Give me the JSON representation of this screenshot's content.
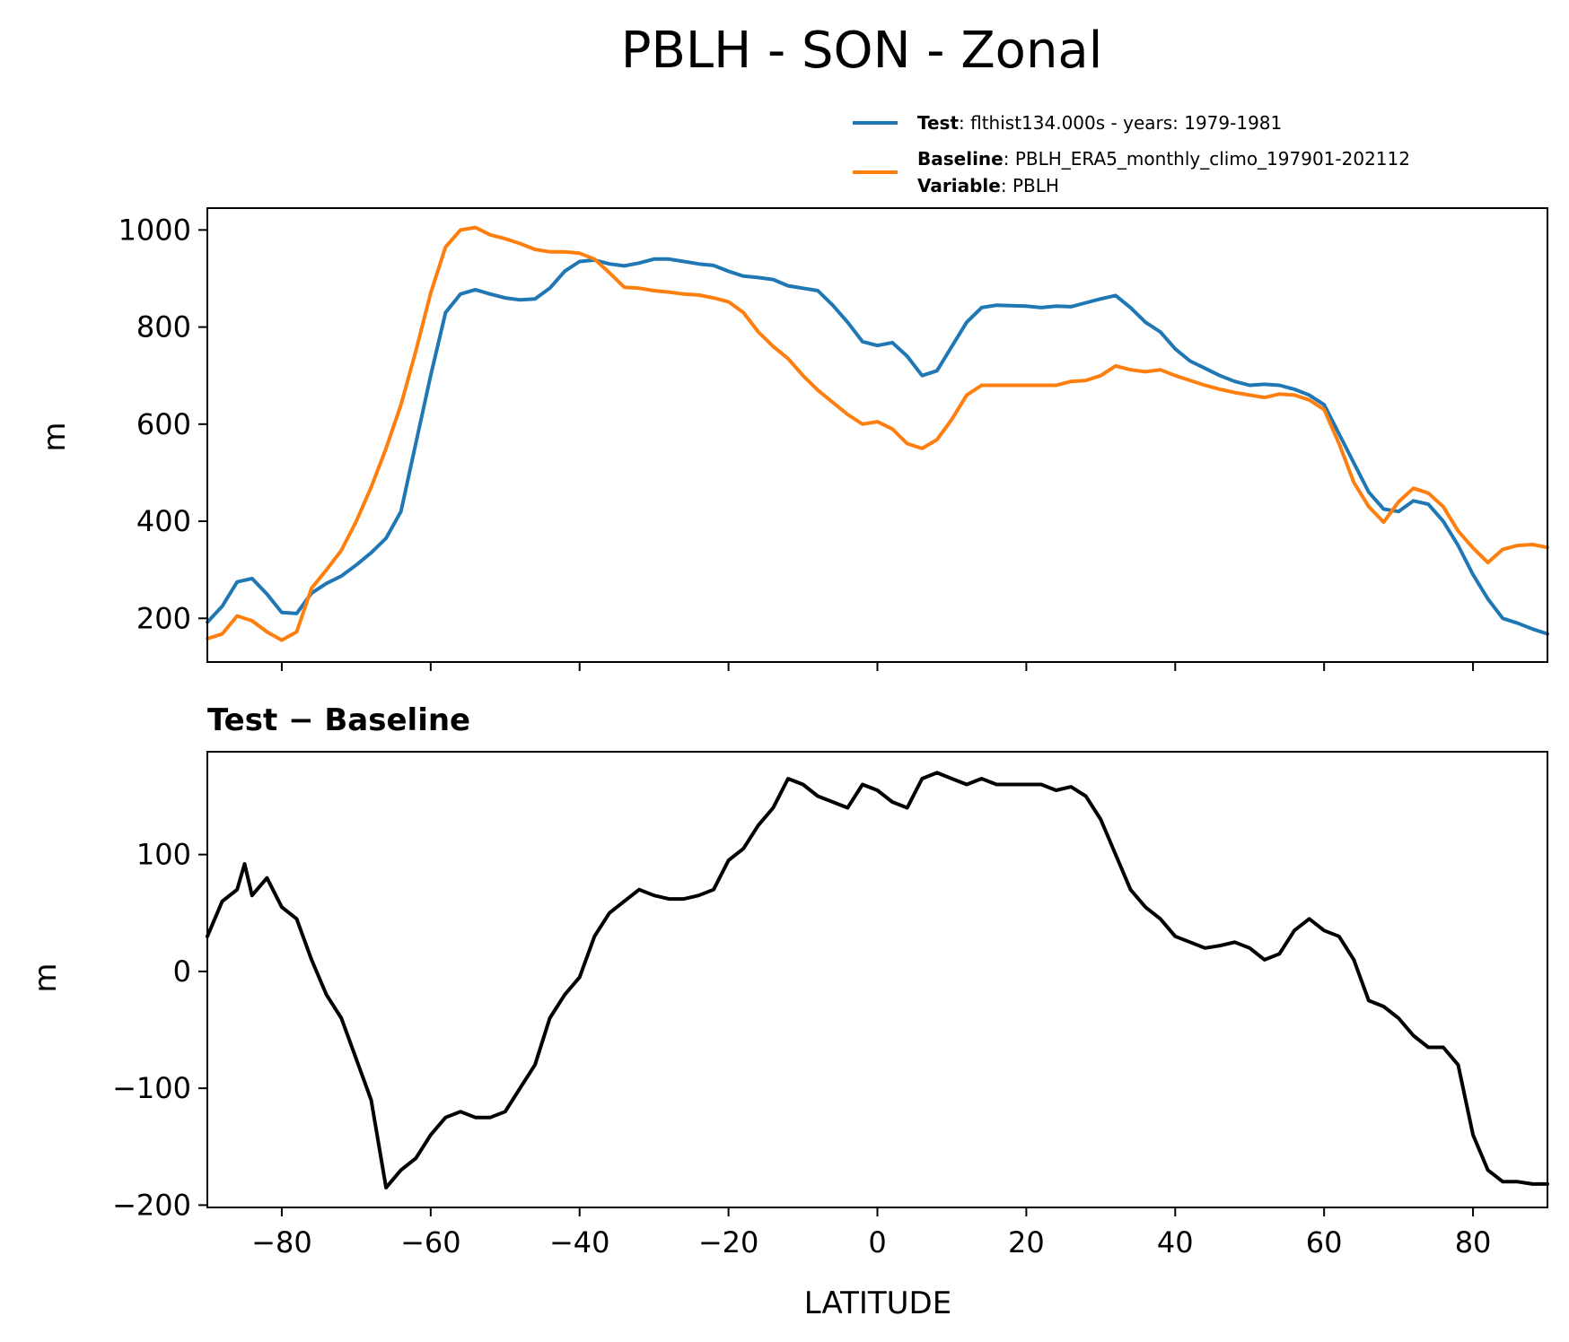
{
  "title": "PBLH - SON - Zonal",
  "legend": {
    "test_key": "Test",
    "test_value": ": flthist134.000s - years: 1979-1981",
    "baseline_key": "Baseline",
    "baseline_value": ": PBLH_ERA5_monthly_climo_197901-202112",
    "variable_key": "Variable",
    "variable_value": ": PBLH",
    "placement": "upper-right, above top panel"
  },
  "colors": {
    "test": "#1f77b4",
    "baseline": "#ff7f0e",
    "diff": "#000000"
  },
  "chart_data": [
    {
      "type": "line",
      "xlabel": "",
      "ylabel": "m",
      "xlim": [
        -90,
        90
      ],
      "ylim": [
        110,
        1045
      ],
      "xticks": [
        -80,
        -60,
        -40,
        -20,
        0,
        20,
        40,
        60,
        80
      ],
      "yticks": [
        200,
        400,
        600,
        800,
        1000
      ],
      "ytick_labels": [
        "200",
        "400",
        "600",
        "800",
        "1000"
      ],
      "grid": false,
      "series": [
        {
          "name": "Test",
          "color": "#1f77b4",
          "x": [
            -90,
            -88,
            -86,
            -84,
            -82,
            -80,
            -78,
            -76,
            -74,
            -72,
            -70,
            -68,
            -66,
            -64,
            -62,
            -60,
            -58,
            -56,
            -54,
            -52,
            -50,
            -48,
            -46,
            -44,
            -42,
            -40,
            -38,
            -36,
            -34,
            -32,
            -30,
            -28,
            -26,
            -24,
            -22,
            -20,
            -18,
            -16,
            -14,
            -12,
            -10,
            -8,
            -6,
            -4,
            -2,
            0,
            2,
            4,
            6,
            8,
            10,
            12,
            14,
            16,
            18,
            20,
            22,
            24,
            26,
            28,
            30,
            32,
            34,
            36,
            38,
            40,
            42,
            44,
            46,
            48,
            50,
            52,
            54,
            56,
            58,
            60,
            62,
            64,
            66,
            68,
            70,
            72,
            74,
            76,
            78,
            80,
            82,
            84,
            86,
            88,
            90
          ],
          "y": [
            192,
            225,
            275,
            282,
            250,
            212,
            210,
            252,
            272,
            287,
            310,
            335,
            365,
            420,
            560,
            700,
            830,
            868,
            877,
            868,
            860,
            856,
            858,
            880,
            915,
            935,
            938,
            930,
            926,
            932,
            940,
            940,
            935,
            930,
            927,
            915,
            905,
            902,
            898,
            885,
            880,
            875,
            845,
            810,
            770,
            762,
            768,
            740,
            700,
            710,
            760,
            810,
            840,
            845,
            844,
            843,
            840,
            843,
            842,
            850,
            858,
            865,
            840,
            810,
            790,
            755,
            730,
            715,
            700,
            688,
            680,
            682,
            680,
            672,
            660,
            640,
            580,
            520,
            460,
            425,
            420,
            442,
            435,
            400,
            350,
            290,
            240,
            200,
            190,
            178,
            168
          ]
        },
        {
          "name": "Baseline",
          "color": "#ff7f0e",
          "x": [
            -90,
            -88,
            -86,
            -84,
            -82,
            -80,
            -78,
            -76,
            -74,
            -72,
            -70,
            -68,
            -66,
            -64,
            -62,
            -60,
            -58,
            -56,
            -54,
            -52,
            -50,
            -48,
            -46,
            -44,
            -42,
            -40,
            -38,
            -36,
            -34,
            -32,
            -30,
            -28,
            -26,
            -24,
            -22,
            -20,
            -18,
            -16,
            -14,
            -12,
            -10,
            -8,
            -6,
            -4,
            -2,
            0,
            2,
            4,
            6,
            8,
            10,
            12,
            14,
            16,
            18,
            20,
            22,
            24,
            26,
            28,
            30,
            32,
            34,
            36,
            38,
            40,
            42,
            44,
            46,
            48,
            50,
            52,
            54,
            56,
            58,
            60,
            62,
            64,
            66,
            68,
            70,
            72,
            74,
            76,
            78,
            80,
            82,
            84,
            86,
            88,
            90
          ],
          "y": [
            158,
            168,
            205,
            195,
            172,
            155,
            172,
            262,
            300,
            340,
            400,
            470,
            550,
            640,
            750,
            870,
            965,
            1000,
            1005,
            990,
            982,
            972,
            960,
            955,
            955,
            952,
            940,
            912,
            882,
            880,
            875,
            872,
            868,
            866,
            860,
            852,
            830,
            790,
            760,
            735,
            700,
            670,
            645,
            620,
            600,
            605,
            590,
            560,
            550,
            568,
            610,
            660,
            680,
            680,
            680,
            680,
            680,
            680,
            688,
            690,
            700,
            720,
            712,
            708,
            712,
            700,
            690,
            680,
            672,
            665,
            660,
            655,
            662,
            660,
            650,
            630,
            560,
            480,
            430,
            398,
            440,
            468,
            458,
            430,
            380,
            345,
            315,
            342,
            350,
            352,
            346
          ]
        }
      ]
    },
    {
      "type": "line",
      "title": "Test − Baseline",
      "xlabel": "LATITUDE",
      "ylabel": "m",
      "xlim": [
        -90,
        90
      ],
      "ylim": [
        -202,
        188
      ],
      "xticks": [
        -80,
        -60,
        -40,
        -20,
        0,
        20,
        40,
        60,
        80
      ],
      "xtick_labels": [
        "−80",
        "−60",
        "−40",
        "−20",
        "0",
        "20",
        "40",
        "60",
        "80"
      ],
      "yticks": [
        -200,
        -100,
        0,
        100
      ],
      "ytick_labels": [
        "−200",
        "−100",
        "0",
        "100"
      ],
      "grid": false,
      "series": [
        {
          "name": "Test − Baseline",
          "color": "#000000",
          "x": [
            -90,
            -88,
            -86,
            -85,
            -84,
            -82,
            -80,
            -78,
            -76,
            -74,
            -72,
            -70,
            -68,
            -66,
            -64,
            -62,
            -60,
            -58,
            -56,
            -54,
            -52,
            -50,
            -48,
            -46,
            -44,
            -42,
            -40,
            -38,
            -36,
            -34,
            -32,
            -30,
            -28,
            -26,
            -24,
            -22,
            -20,
            -18,
            -16,
            -14,
            -12,
            -10,
            -8,
            -6,
            -4,
            -2,
            0,
            2,
            4,
            6,
            8,
            10,
            12,
            14,
            16,
            18,
            20,
            22,
            24,
            26,
            28,
            30,
            32,
            34,
            36,
            38,
            40,
            42,
            44,
            46,
            48,
            50,
            52,
            54,
            56,
            58,
            60,
            62,
            64,
            66,
            68,
            70,
            72,
            74,
            76,
            78,
            80,
            82,
            84,
            86,
            88,
            90
          ],
          "y": [
            30,
            60,
            70,
            92,
            65,
            80,
            55,
            45,
            10,
            -20,
            -40,
            -75,
            -110,
            -185,
            -170,
            -160,
            -140,
            -125,
            -120,
            -125,
            -125,
            -120,
            -100,
            -80,
            -40,
            -20,
            -5,
            30,
            50,
            60,
            70,
            65,
            62,
            62,
            65,
            70,
            95,
            105,
            125,
            140,
            165,
            160,
            150,
            145,
            140,
            160,
            155,
            145,
            140,
            165,
            170,
            165,
            160,
            165,
            160,
            160,
            160,
            160,
            155,
            158,
            150,
            130,
            100,
            70,
            55,
            45,
            30,
            25,
            20,
            22,
            25,
            20,
            10,
            15,
            35,
            45,
            35,
            30,
            10,
            -25,
            -30,
            -40,
            -55,
            -65,
            -65,
            -80,
            -140,
            -170,
            -180,
            -180,
            -182,
            -182
          ]
        }
      ]
    }
  ]
}
